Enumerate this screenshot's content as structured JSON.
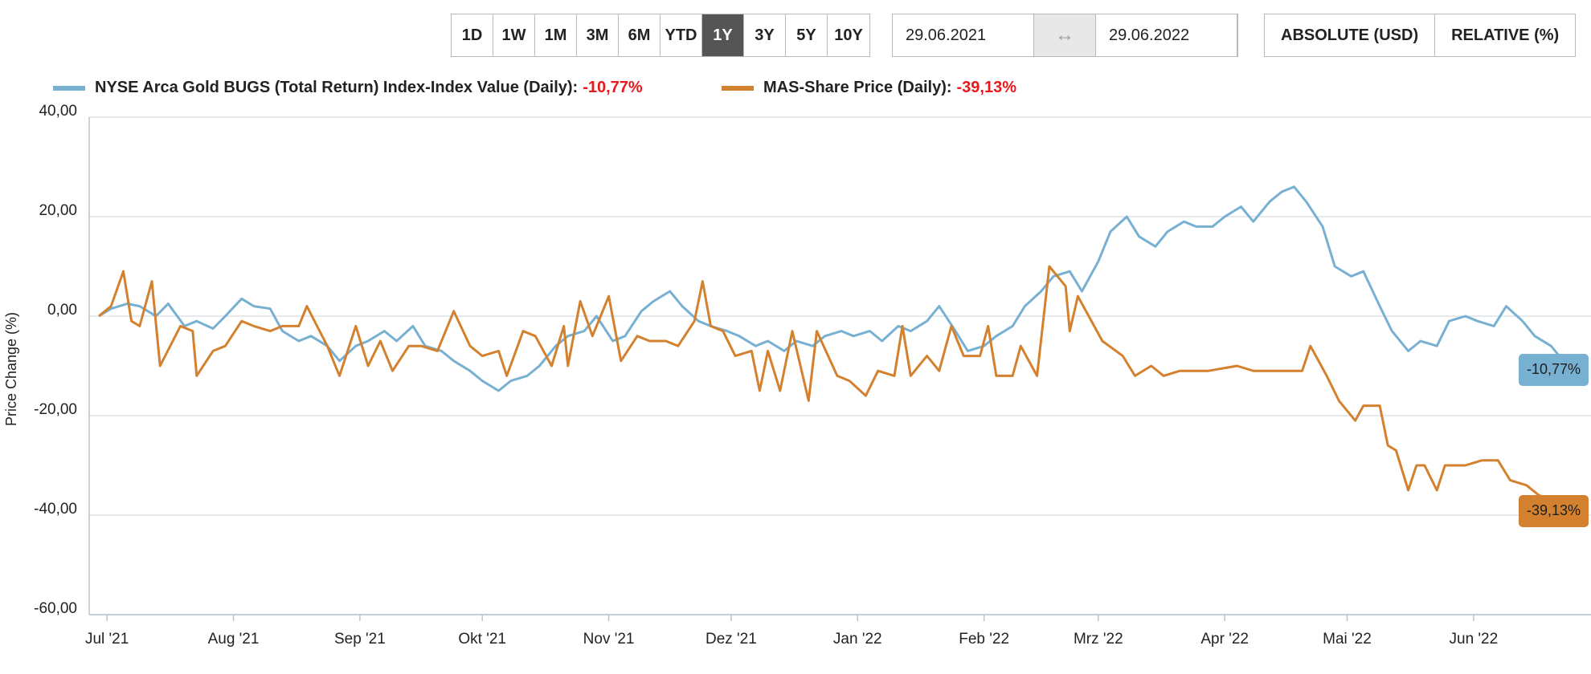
{
  "toolbar": {
    "ranges": [
      "1D",
      "1W",
      "1M",
      "3M",
      "6M",
      "YTD",
      "1Y",
      "3Y",
      "5Y",
      "10Y"
    ],
    "active_range": "1Y",
    "date_from": "29.06.2021",
    "date_to": "29.06.2022",
    "modes": [
      "ABSOLUTE (USD)",
      "RELATIVE (%)"
    ]
  },
  "colors": {
    "series1": "#78b0d1",
    "series2": "#d4812f",
    "negative": "#e8181b",
    "grid": "#dde3ea"
  },
  "chart_data": {
    "type": "line",
    "ylabel": "Price Change (%)",
    "ylim": [
      -60,
      40
    ],
    "y_ticks": [
      40,
      20,
      0,
      -20,
      -40,
      -60
    ],
    "y_tick_labels": [
      "40,00",
      "20,00",
      "0,00",
      "-20,00",
      "-40,00",
      "-60,00"
    ],
    "x_range": [
      "2021-06-29",
      "2022-06-29"
    ],
    "x_ticks": [
      {
        "date": "2021-07-01",
        "label": "Jul '21"
      },
      {
        "date": "2021-08-01",
        "label": "Aug '21"
      },
      {
        "date": "2021-09-01",
        "label": "Sep '21"
      },
      {
        "date": "2021-10-01",
        "label": "Okt '21"
      },
      {
        "date": "2021-11-01",
        "label": "Nov '21"
      },
      {
        "date": "2021-12-01",
        "label": "Dez '21"
      },
      {
        "date": "2022-01-01",
        "label": "Jan '22"
      },
      {
        "date": "2022-02-01",
        "label": "Feb '22"
      },
      {
        "date": "2022-03-01",
        "label": "Mrz '22"
      },
      {
        "date": "2022-04-01",
        "label": "Apr '22"
      },
      {
        "date": "2022-05-01",
        "label": "Mai '22"
      },
      {
        "date": "2022-06-01",
        "label": "Jun '22"
      }
    ],
    "grid": true,
    "legend_position": "top-left",
    "series": [
      {
        "name": "NYSE Arca Gold BUGS (Total Return) Index-Index Value (Daily):",
        "change_label": "-10,77%",
        "end_label": "-10,77%",
        "points": [
          [
            "2021-06-29",
            0
          ],
          [
            "2021-07-02",
            1.5
          ],
          [
            "2021-07-06",
            2.5
          ],
          [
            "2021-07-09",
            2
          ],
          [
            "2021-07-13",
            0
          ],
          [
            "2021-07-16",
            2.5
          ],
          [
            "2021-07-20",
            -2
          ],
          [
            "2021-07-23",
            -1
          ],
          [
            "2021-07-27",
            -2.5
          ],
          [
            "2021-07-30",
            0
          ],
          [
            "2021-08-03",
            3.5
          ],
          [
            "2021-08-06",
            2
          ],
          [
            "2021-08-10",
            1.5
          ],
          [
            "2021-08-13",
            -3
          ],
          [
            "2021-08-17",
            -5
          ],
          [
            "2021-08-20",
            -4
          ],
          [
            "2021-08-24",
            -6
          ],
          [
            "2021-08-27",
            -9
          ],
          [
            "2021-08-31",
            -6
          ],
          [
            "2021-09-03",
            -5
          ],
          [
            "2021-09-07",
            -3
          ],
          [
            "2021-09-10",
            -5
          ],
          [
            "2021-09-14",
            -2
          ],
          [
            "2021-09-17",
            -6
          ],
          [
            "2021-09-21",
            -7
          ],
          [
            "2021-09-24",
            -9
          ],
          [
            "2021-09-28",
            -11
          ],
          [
            "2021-10-01",
            -13
          ],
          [
            "2021-10-05",
            -15
          ],
          [
            "2021-10-08",
            -13
          ],
          [
            "2021-10-12",
            -12
          ],
          [
            "2021-10-15",
            -10
          ],
          [
            "2021-10-19",
            -6
          ],
          [
            "2021-10-22",
            -4
          ],
          [
            "2021-10-26",
            -3
          ],
          [
            "2021-10-29",
            0
          ],
          [
            "2021-11-02",
            -5
          ],
          [
            "2021-11-05",
            -4
          ],
          [
            "2021-11-09",
            1
          ],
          [
            "2021-11-12",
            3
          ],
          [
            "2021-11-16",
            5
          ],
          [
            "2021-11-19",
            2
          ],
          [
            "2021-11-23",
            -1
          ],
          [
            "2021-11-26",
            -2
          ],
          [
            "2021-11-30",
            -3
          ],
          [
            "2021-12-03",
            -4
          ],
          [
            "2021-12-07",
            -6
          ],
          [
            "2021-12-10",
            -5
          ],
          [
            "2021-12-14",
            -7
          ],
          [
            "2021-12-17",
            -5
          ],
          [
            "2021-12-21",
            -6
          ],
          [
            "2021-12-24",
            -4
          ],
          [
            "2021-12-28",
            -3
          ],
          [
            "2021-12-31",
            -4
          ],
          [
            "2022-01-04",
            -3
          ],
          [
            "2022-01-07",
            -5
          ],
          [
            "2022-01-11",
            -2
          ],
          [
            "2022-01-14",
            -3
          ],
          [
            "2022-01-18",
            -1
          ],
          [
            "2022-01-21",
            2
          ],
          [
            "2022-01-25",
            -3
          ],
          [
            "2022-01-28",
            -7
          ],
          [
            "2022-02-01",
            -6
          ],
          [
            "2022-02-04",
            -4
          ],
          [
            "2022-02-08",
            -2
          ],
          [
            "2022-02-11",
            2
          ],
          [
            "2022-02-15",
            5
          ],
          [
            "2022-02-18",
            8
          ],
          [
            "2022-02-22",
            9
          ],
          [
            "2022-02-25",
            5
          ],
          [
            "2022-03-01",
            11
          ],
          [
            "2022-03-04",
            17
          ],
          [
            "2022-03-08",
            20
          ],
          [
            "2022-03-11",
            16
          ],
          [
            "2022-03-15",
            14
          ],
          [
            "2022-03-18",
            17
          ],
          [
            "2022-03-22",
            19
          ],
          [
            "2022-03-25",
            18
          ],
          [
            "2022-03-29",
            18
          ],
          [
            "2022-04-01",
            20
          ],
          [
            "2022-04-05",
            22
          ],
          [
            "2022-04-08",
            19
          ],
          [
            "2022-04-12",
            23
          ],
          [
            "2022-04-15",
            25
          ],
          [
            "2022-04-18",
            26
          ],
          [
            "2022-04-21",
            23
          ],
          [
            "2022-04-25",
            18
          ],
          [
            "2022-04-28",
            10
          ],
          [
            "2022-05-02",
            8
          ],
          [
            "2022-05-05",
            9
          ],
          [
            "2022-05-09",
            2
          ],
          [
            "2022-05-12",
            -3
          ],
          [
            "2022-05-16",
            -7
          ],
          [
            "2022-05-19",
            -5
          ],
          [
            "2022-05-23",
            -6
          ],
          [
            "2022-05-26",
            -1
          ],
          [
            "2022-05-30",
            0
          ],
          [
            "2022-06-02",
            -1
          ],
          [
            "2022-06-06",
            -2
          ],
          [
            "2022-06-09",
            2
          ],
          [
            "2022-06-13",
            -1
          ],
          [
            "2022-06-16",
            -4
          ],
          [
            "2022-06-20",
            -6
          ],
          [
            "2022-06-23",
            -9
          ],
          [
            "2022-06-27",
            -11
          ],
          [
            "2022-06-29",
            -10.77
          ]
        ]
      },
      {
        "name": "MAS-Share Price (Daily):",
        "change_label": "-39,13%",
        "end_label": "-39,13%",
        "points": [
          [
            "2021-06-29",
            0
          ],
          [
            "2021-07-02",
            2
          ],
          [
            "2021-07-05",
            9
          ],
          [
            "2021-07-07",
            -1
          ],
          [
            "2021-07-09",
            -2
          ],
          [
            "2021-07-12",
            7
          ],
          [
            "2021-07-14",
            -10
          ],
          [
            "2021-07-19",
            -2
          ],
          [
            "2021-07-22",
            -3
          ],
          [
            "2021-07-23",
            -12
          ],
          [
            "2021-07-27",
            -7
          ],
          [
            "2021-07-30",
            -6
          ],
          [
            "2021-08-03",
            -1
          ],
          [
            "2021-08-06",
            -2
          ],
          [
            "2021-08-10",
            -3
          ],
          [
            "2021-08-13",
            -2
          ],
          [
            "2021-08-17",
            -2
          ],
          [
            "2021-08-19",
            2
          ],
          [
            "2021-08-24",
            -6
          ],
          [
            "2021-08-27",
            -12
          ],
          [
            "2021-08-31",
            -2
          ],
          [
            "2021-09-03",
            -10
          ],
          [
            "2021-09-06",
            -5
          ],
          [
            "2021-09-09",
            -11
          ],
          [
            "2021-09-13",
            -6
          ],
          [
            "2021-09-16",
            -6
          ],
          [
            "2021-09-20",
            -7
          ],
          [
            "2021-09-24",
            1
          ],
          [
            "2021-09-28",
            -6
          ],
          [
            "2021-10-01",
            -8
          ],
          [
            "2021-10-05",
            -7
          ],
          [
            "2021-10-07",
            -12
          ],
          [
            "2021-10-11",
            -3
          ],
          [
            "2021-10-14",
            -4
          ],
          [
            "2021-10-18",
            -10
          ],
          [
            "2021-10-21",
            -2
          ],
          [
            "2021-10-22",
            -10
          ],
          [
            "2021-10-25",
            3
          ],
          [
            "2021-10-28",
            -4
          ],
          [
            "2021-11-01",
            4
          ],
          [
            "2021-11-04",
            -9
          ],
          [
            "2021-11-08",
            -4
          ],
          [
            "2021-11-11",
            -5
          ],
          [
            "2021-11-15",
            -5
          ],
          [
            "2021-11-18",
            -6
          ],
          [
            "2021-11-22",
            -1
          ],
          [
            "2021-11-24",
            7
          ],
          [
            "2021-11-26",
            -2
          ],
          [
            "2021-11-29",
            -3
          ],
          [
            "2021-12-02",
            -8
          ],
          [
            "2021-12-06",
            -7
          ],
          [
            "2021-12-08",
            -15
          ],
          [
            "2021-12-10",
            -7
          ],
          [
            "2021-12-13",
            -15
          ],
          [
            "2021-12-16",
            -3
          ],
          [
            "2021-12-20",
            -17
          ],
          [
            "2021-12-22",
            -3
          ],
          [
            "2021-12-27",
            -12
          ],
          [
            "2021-12-30",
            -13
          ],
          [
            "2022-01-03",
            -16
          ],
          [
            "2022-01-06",
            -11
          ],
          [
            "2022-01-10",
            -12
          ],
          [
            "2022-01-12",
            -2
          ],
          [
            "2022-01-14",
            -12
          ],
          [
            "2022-01-18",
            -8
          ],
          [
            "2022-01-21",
            -11
          ],
          [
            "2022-01-24",
            -2
          ],
          [
            "2022-01-27",
            -8
          ],
          [
            "2022-01-31",
            -8
          ],
          [
            "2022-02-02",
            -2
          ],
          [
            "2022-02-04",
            -12
          ],
          [
            "2022-02-08",
            -12
          ],
          [
            "2022-02-10",
            -6
          ],
          [
            "2022-02-14",
            -12
          ],
          [
            "2022-02-17",
            10
          ],
          [
            "2022-02-21",
            6
          ],
          [
            "2022-02-22",
            -3
          ],
          [
            "2022-02-24",
            4
          ],
          [
            "2022-02-28",
            -2
          ],
          [
            "2022-03-02",
            -5
          ],
          [
            "2022-03-07",
            -8
          ],
          [
            "2022-03-10",
            -12
          ],
          [
            "2022-03-14",
            -10
          ],
          [
            "2022-03-17",
            -12
          ],
          [
            "2022-03-21",
            -11
          ],
          [
            "2022-03-28",
            -11
          ],
          [
            "2022-04-04",
            -10
          ],
          [
            "2022-04-08",
            -11
          ],
          [
            "2022-04-14",
            -11
          ],
          [
            "2022-04-20",
            -11
          ],
          [
            "2022-04-22",
            -6
          ],
          [
            "2022-04-26",
            -12
          ],
          [
            "2022-04-29",
            -17
          ],
          [
            "2022-05-03",
            -21
          ],
          [
            "2022-05-05",
            -18
          ],
          [
            "2022-05-09",
            -18
          ],
          [
            "2022-05-11",
            -26
          ],
          [
            "2022-05-13",
            -27
          ],
          [
            "2022-05-16",
            -35
          ],
          [
            "2022-05-18",
            -30
          ],
          [
            "2022-05-20",
            -30
          ],
          [
            "2022-05-23",
            -35
          ],
          [
            "2022-05-25",
            -30
          ],
          [
            "2022-05-30",
            -30
          ],
          [
            "2022-06-03",
            -29
          ],
          [
            "2022-06-07",
            -29
          ],
          [
            "2022-06-10",
            -33
          ],
          [
            "2022-06-14",
            -34
          ],
          [
            "2022-06-17",
            -36
          ],
          [
            "2022-06-20",
            -37
          ],
          [
            "2022-06-22",
            -40
          ],
          [
            "2022-06-24",
            -37
          ],
          [
            "2022-06-27",
            -39
          ],
          [
            "2022-06-29",
            -39.13
          ]
        ]
      }
    ]
  }
}
